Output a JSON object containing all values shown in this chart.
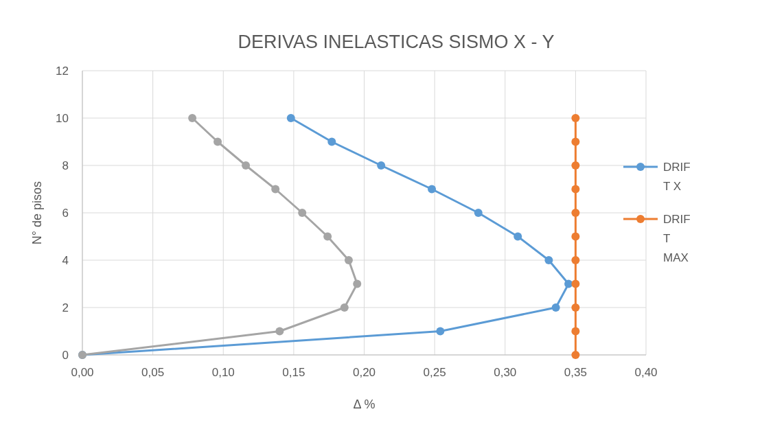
{
  "chart_data": {
    "type": "line",
    "title": "DERIVAS INELASTICAS SISMO X - Y",
    "xlabel": "Δ %",
    "ylabel": "N° de pisos",
    "xlim": [
      0,
      0.4
    ],
    "xticks": [
      {
        "value": 0,
        "label": "0,00"
      },
      {
        "value": 0.05,
        "label": "0,05"
      },
      {
        "value": 0.1,
        "label": "0,10"
      },
      {
        "value": 0.15,
        "label": "0,15"
      },
      {
        "value": 0.2,
        "label": "0,20"
      },
      {
        "value": 0.25,
        "label": "0,25"
      },
      {
        "value": 0.3,
        "label": "0,30"
      },
      {
        "value": 0.35,
        "label": "0,35"
      },
      {
        "value": 0.4,
        "label": "0,40"
      }
    ],
    "ylim": [
      0,
      12
    ],
    "yticks": [
      0,
      2,
      4,
      6,
      8,
      10,
      12
    ],
    "grid": true,
    "legend": "right",
    "marker": "circle",
    "line_style": "solid",
    "series": [
      {
        "name": "DRIFT X",
        "color": "#5b9bd5",
        "x": [
          0,
          0.254,
          0.336,
          0.345,
          0.331,
          0.309,
          0.281,
          0.248,
          0.212,
          0.177,
          0.148
        ],
        "values": [
          0,
          1,
          2,
          3,
          4,
          5,
          6,
          7,
          8,
          9,
          10
        ]
      },
      {
        "name": "DRIFT MAX",
        "color": "#ed7d31",
        "x": [
          0.35,
          0.35,
          0.35,
          0.35,
          0.35,
          0.35,
          0.35,
          0.35,
          0.35,
          0.35,
          0.35
        ],
        "values": [
          0,
          1,
          2,
          3,
          4,
          5,
          6,
          7,
          8,
          9,
          10
        ]
      },
      {
        "color": "#a5a5a5",
        "x": [
          0,
          0.14,
          0.186,
          0.195,
          0.189,
          0.174,
          0.156,
          0.137,
          0.116,
          0.096,
          0.078
        ],
        "values": [
          0,
          1,
          2,
          3,
          4,
          5,
          6,
          7,
          8,
          9,
          10
        ]
      }
    ]
  }
}
